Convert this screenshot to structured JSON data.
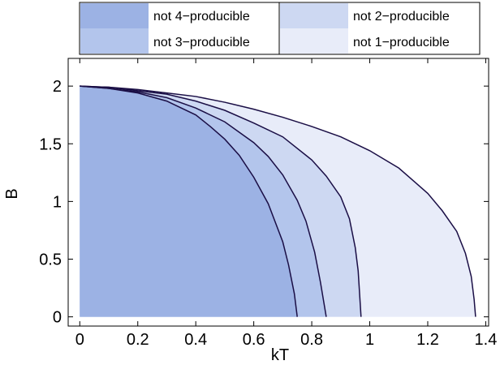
{
  "chart_data": {
    "type": "area",
    "xlabel": "kT",
    "ylabel": "B",
    "xlim": [
      -0.04,
      1.41
    ],
    "ylim": [
      -0.08,
      2.24
    ],
    "xticks": [
      "0",
      "0.2",
      "0.4",
      "0.6",
      "0.8",
      "1",
      "1.2",
      "1.4"
    ],
    "xtick_values": [
      0,
      0.2,
      0.4,
      0.6,
      0.8,
      1.0,
      1.2,
      1.4
    ],
    "yticks": [
      "0",
      "0.5",
      "1",
      "1.5",
      "2"
    ],
    "ytick_values": [
      0,
      0.5,
      1.0,
      1.5,
      2.0
    ],
    "grid": false,
    "legend_position": "top",
    "series": [
      {
        "name": "not 1−producible",
        "color": "#e8ecf9",
        "x": [
          0.0,
          0.1,
          0.2,
          0.3,
          0.4,
          0.5,
          0.6,
          0.7,
          0.8,
          0.9,
          1.0,
          1.1,
          1.2,
          1.25,
          1.3,
          1.33,
          1.35,
          1.36,
          1.365
        ],
        "y": [
          2.0,
          1.99,
          1.97,
          1.94,
          1.91,
          1.86,
          1.8,
          1.73,
          1.65,
          1.56,
          1.44,
          1.29,
          1.07,
          0.92,
          0.74,
          0.55,
          0.35,
          0.15,
          0.0
        ]
      },
      {
        "name": "not 2−producible",
        "color": "#cdd8f2",
        "x": [
          0.0,
          0.1,
          0.2,
          0.3,
          0.4,
          0.5,
          0.6,
          0.7,
          0.8,
          0.85,
          0.9,
          0.93,
          0.95,
          0.96,
          0.97
        ],
        "y": [
          2.0,
          1.99,
          1.96,
          1.93,
          1.87,
          1.79,
          1.68,
          1.56,
          1.36,
          1.22,
          1.04,
          0.85,
          0.6,
          0.4,
          0.0
        ]
      },
      {
        "name": "not 3−producible",
        "color": "#b3c5ec",
        "x": [
          0.0,
          0.1,
          0.2,
          0.3,
          0.4,
          0.5,
          0.6,
          0.65,
          0.7,
          0.75,
          0.78,
          0.81,
          0.83,
          0.85
        ],
        "y": [
          2.0,
          1.98,
          1.95,
          1.9,
          1.81,
          1.69,
          1.51,
          1.39,
          1.23,
          1.01,
          0.83,
          0.56,
          0.3,
          0.0
        ]
      },
      {
        "name": "not 4−producible",
        "color": "#9cb2e4",
        "x": [
          0.0,
          0.1,
          0.2,
          0.3,
          0.4,
          0.45,
          0.5,
          0.55,
          0.6,
          0.65,
          0.7,
          0.72,
          0.74,
          0.75
        ],
        "y": [
          2.0,
          1.98,
          1.94,
          1.87,
          1.75,
          1.65,
          1.54,
          1.4,
          1.21,
          0.98,
          0.65,
          0.45,
          0.2,
          0.0
        ]
      }
    ],
    "legend": [
      {
        "label": "not 4−producible",
        "color": "#9cb2e4"
      },
      {
        "label": "not 3−producible",
        "color": "#b3c5ec"
      },
      {
        "label": "not 2−producible",
        "color": "#cdd8f2"
      },
      {
        "label": "not 1−producible",
        "color": "#e8ecf9"
      }
    ],
    "boundary_color": "#1a0e45"
  }
}
